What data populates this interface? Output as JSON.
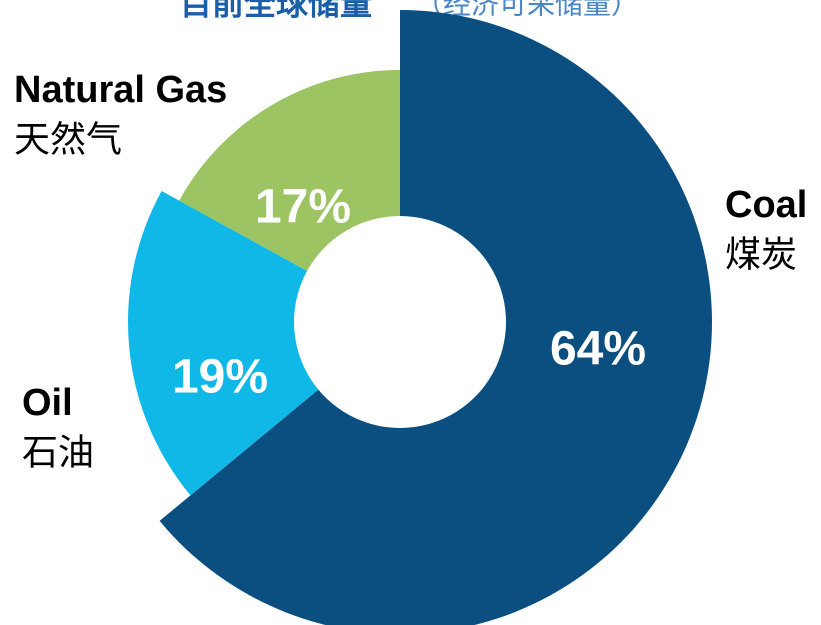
{
  "chart_data": {
    "type": "donut",
    "title": "目前全球储量",
    "subtitle": "（经济可采储量）",
    "categories": [
      "Coal",
      "Oil",
      "Natural Gas"
    ],
    "categories_zh": [
      "煤炭",
      "石油",
      "天然气"
    ],
    "values": [
      64,
      19,
      17
    ],
    "value_labels": [
      "64%",
      "19%",
      "17%"
    ],
    "colors": [
      "#0b4f80",
      "#0fb8e6",
      "#9cc463"
    ]
  }
}
